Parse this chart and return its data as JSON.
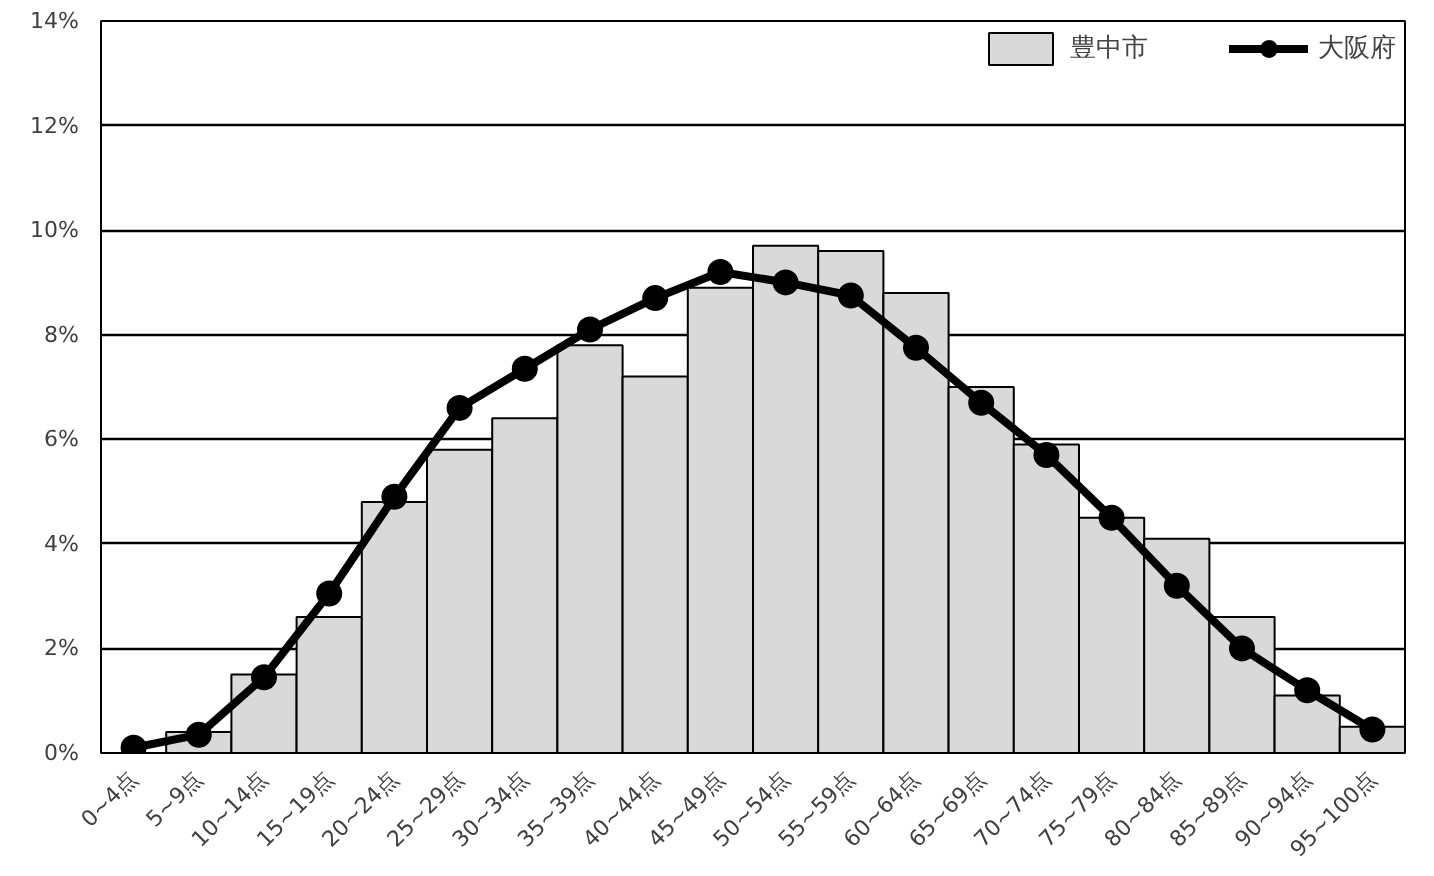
{
  "chart_data": {
    "type": "bar",
    "categories": [
      "0~4点",
      "5~9点",
      "10~14点",
      "15~19点",
      "20~24点",
      "25~29点",
      "30~34点",
      "35~39点",
      "40~44点",
      "45~49点",
      "50~54点",
      "55~59点",
      "60~64点",
      "65~69点",
      "70~74点",
      "75~79点",
      "80~84点",
      "85~89点",
      "90~94点",
      "95~100点"
    ],
    "series": [
      {
        "name": "豊中市",
        "color": "#d9d9d9",
        "values": [
          null,
          0.4,
          1.5,
          2.6,
          4.8,
          5.8,
          6.4,
          7.8,
          7.2,
          8.9,
          9.7,
          9.6,
          8.8,
          7.0,
          5.9,
          4.5,
          4.1,
          2.6,
          1.1,
          0.5
        ]
      },
      {
        "name": "大阪府",
        "type": "line",
        "color": "#000000",
        "values": [
          0.1,
          0.35,
          1.45,
          3.05,
          4.9,
          6.6,
          7.35,
          8.1,
          8.7,
          9.2,
          9.0,
          8.75,
          7.75,
          6.7,
          5.7,
          4.5,
          3.2,
          2.0,
          1.2,
          0.45
        ]
      }
    ],
    "ylim": [
      0,
      14
    ],
    "yticks": [
      {
        "value": 0,
        "label": "0%"
      },
      {
        "value": 2,
        "label": "2%"
      },
      {
        "value": 4,
        "label": "4%"
      },
      {
        "value": 6,
        "label": "6%"
      },
      {
        "value": 8,
        "label": "8%"
      },
      {
        "value": 10,
        "label": "10%"
      },
      {
        "value": 12,
        "label": "12%"
      },
      {
        "value": 14,
        "label": "14%"
      }
    ],
    "grid": "y",
    "legend": "top right",
    "marker": "circle",
    "line_style": "solid"
  }
}
